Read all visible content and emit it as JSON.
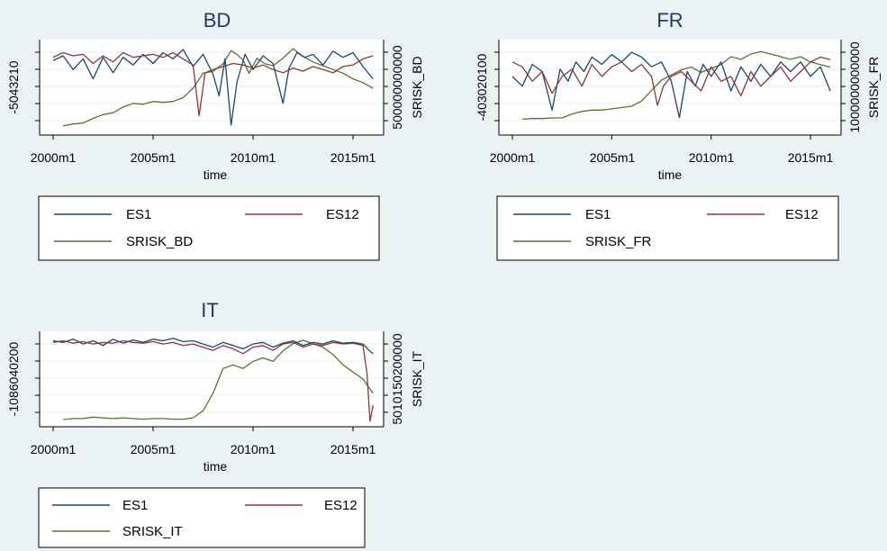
{
  "colors": {
    "es1": "#1a476f",
    "es12": "#90353b",
    "srisk": "#55752f",
    "plotbg": "#ffffff",
    "grid": "#eaf2f3"
  },
  "chart_data": [
    {
      "type": "line",
      "title": "BD",
      "xlabel": "time",
      "ylabel_right": "SRISK_BD",
      "xticks": [
        "2000m1",
        "2005m1",
        "2010m1",
        "2015m1"
      ],
      "left_tick_text": "-5043210",
      "right_tick_text": "500000000000",
      "legend": [
        "ES1",
        "ES12",
        "SRISK_BD"
      ],
      "series": [
        {
          "name": "ES1",
          "axis": "left",
          "x": [
            2000.0,
            2000.5,
            2001.0,
            2001.5,
            2002.0,
            2002.5,
            2003.0,
            2003.5,
            2004.0,
            2004.5,
            2005.0,
            2005.5,
            2006.0,
            2006.5,
            2007.0,
            2007.5,
            2008.0,
            2008.3,
            2008.6,
            2008.9,
            2009.2,
            2009.6,
            2010.0,
            2010.5,
            2011.0,
            2011.5,
            2011.8,
            2012.2,
            2012.6,
            2013.0,
            2013.5,
            2014.0,
            2014.5,
            2015.0,
            2015.5,
            2016.0
          ],
          "y": [
            0.0,
            0.3,
            -0.6,
            0.1,
            -1.2,
            0.2,
            -0.8,
            0.2,
            -0.3,
            0.4,
            -0.2,
            0.5,
            0.1,
            0.7,
            -0.4,
            0.4,
            -0.9,
            -2.3,
            0.1,
            -4.2,
            -1.4,
            0.4,
            -0.6,
            0.3,
            -0.2,
            -2.8,
            -0.5,
            0.5,
            0.2,
            0.4,
            -0.3,
            0.6,
            0.2,
            0.5,
            -0.4,
            -1.2
          ]
        },
        {
          "name": "ES12",
          "axis": "left",
          "x": [
            2000.0,
            2000.5,
            2001.0,
            2001.5,
            2002.0,
            2002.5,
            2003.0,
            2003.5,
            2004.0,
            2004.5,
            2005.0,
            2005.5,
            2006.0,
            2006.5,
            2007.0,
            2007.3,
            2007.6,
            2008.0,
            2008.5,
            2009.0,
            2009.5,
            2010.0,
            2010.5,
            2011.0,
            2011.5,
            2012.0,
            2012.5,
            2013.0,
            2013.5,
            2014.0,
            2014.5,
            2015.0,
            2015.5,
            2016.0
          ],
          "y": [
            0.2,
            0.5,
            0.3,
            0.4,
            -0.2,
            0.3,
            -0.1,
            0.5,
            0.2,
            0.3,
            0.4,
            0.2,
            0.5,
            0.1,
            -0.3,
            -3.6,
            -0.8,
            -0.6,
            -0.4,
            -0.2,
            -0.3,
            -0.5,
            -0.3,
            -0.6,
            -0.8,
            -0.5,
            -0.7,
            -0.4,
            -0.6,
            -0.8,
            -0.4,
            -0.3,
            0.1,
            0.3
          ]
        },
        {
          "name": "SRISK_BD",
          "axis": "right",
          "x": [
            2000.5,
            2001.0,
            2001.5,
            2002.0,
            2002.5,
            2003.0,
            2003.5,
            2004.0,
            2004.5,
            2005.0,
            2005.5,
            2006.0,
            2006.5,
            2007.0,
            2007.5,
            2008.0,
            2008.5,
            2008.9,
            2009.2,
            2009.5,
            2009.8,
            2010.2,
            2010.6,
            2011.0,
            2011.5,
            2012.0,
            2012.5,
            2013.0,
            2013.5,
            2014.0,
            2014.5,
            2015.0,
            2015.5,
            2016.0
          ],
          "y": [
            20,
            30,
            35,
            60,
            80,
            90,
            120,
            140,
            135,
            150,
            145,
            150,
            170,
            220,
            300,
            310,
            350,
            420,
            400,
            370,
            300,
            380,
            350,
            340,
            380,
            430,
            390,
            360,
            340,
            320,
            300,
            270,
            250,
            220
          ]
        }
      ]
    },
    {
      "type": "line",
      "title": "FR",
      "xlabel": "time",
      "ylabel_right": "SRISK_FR",
      "xticks": [
        "2000m1",
        "2005m1",
        "2010m1",
        "2015m1"
      ],
      "left_tick_text": "-403020100",
      "right_tick_text": "1000000000000",
      "legend": [
        "ES1",
        "ES12",
        "SRISK_FR"
      ],
      "series": [
        {
          "name": "ES1",
          "axis": "left",
          "x": [
            2000.0,
            2000.5,
            2001.0,
            2001.5,
            2002.0,
            2002.4,
            2002.8,
            2003.2,
            2003.6,
            2004.0,
            2004.5,
            2005.0,
            2005.5,
            2006.0,
            2006.5,
            2007.0,
            2007.5,
            2008.0,
            2008.4,
            2008.8,
            2009.2,
            2009.6,
            2010.0,
            2010.5,
            2011.0,
            2011.5,
            2012.0,
            2012.5,
            2013.0,
            2013.5,
            2014.0,
            2014.5,
            2015.0,
            2015.5,
            2016.0
          ],
          "y": [
            -8,
            -12,
            -3,
            -6,
            -22,
            -5,
            -10,
            -2,
            -6,
            0,
            -3,
            1,
            -2,
            2,
            0,
            -4,
            -2,
            -10,
            -25,
            -6,
            -12,
            -3,
            -8,
            -2,
            -14,
            -4,
            -10,
            -3,
            -8,
            -2,
            -6,
            -2,
            -8,
            -4,
            -14
          ]
        },
        {
          "name": "ES12",
          "axis": "left",
          "x": [
            2000.0,
            2000.5,
            2001.0,
            2001.5,
            2002.0,
            2002.5,
            2003.0,
            2003.5,
            2004.0,
            2004.5,
            2005.0,
            2005.5,
            2006.0,
            2006.5,
            2007.0,
            2007.3,
            2007.6,
            2008.0,
            2008.5,
            2009.0,
            2009.5,
            2010.0,
            2010.5,
            2011.0,
            2011.5,
            2012.0,
            2012.5,
            2013.0,
            2013.5,
            2014.0,
            2014.5,
            2015.0,
            2015.5,
            2016.0
          ],
          "y": [
            -2,
            -4,
            -10,
            -6,
            -15,
            -8,
            -5,
            -12,
            -3,
            -8,
            -4,
            -2,
            -6,
            -3,
            -8,
            -20,
            -12,
            -8,
            -6,
            -10,
            -14,
            -4,
            -10,
            -8,
            -16,
            -6,
            -12,
            -8,
            -4,
            -10,
            -6,
            -2,
            0,
            -1
          ]
        },
        {
          "name": "SRISK_FR",
          "axis": "right",
          "x": [
            2000.5,
            2001.0,
            2001.5,
            2002.0,
            2002.5,
            2003.0,
            2003.5,
            2004.0,
            2004.5,
            2005.0,
            2005.5,
            2006.0,
            2006.5,
            2007.0,
            2007.5,
            2008.0,
            2008.5,
            2009.0,
            2009.5,
            2010.0,
            2010.5,
            2011.0,
            2011.5,
            2012.0,
            2012.5,
            2013.0,
            2013.5,
            2014.0,
            2014.5,
            2015.0,
            2015.5,
            2016.0
          ],
          "y": [
            80,
            85,
            85,
            90,
            90,
            120,
            140,
            150,
            150,
            160,
            170,
            180,
            220,
            300,
            380,
            420,
            460,
            480,
            440,
            470,
            500,
            560,
            540,
            580,
            600,
            580,
            560,
            540,
            560,
            520,
            500,
            480
          ]
        }
      ]
    },
    {
      "type": "line",
      "title": "IT",
      "xlabel": "time",
      "ylabel_right": "SRISK_IT",
      "xticks": [
        "2000m1",
        "2005m1",
        "2010m1",
        "2015m1"
      ],
      "left_tick_text": "-1086040200",
      "right_tick_text": "5010150200000",
      "legend": [
        "ES1",
        "ES12",
        "SRISK_IT"
      ],
      "series": [
        {
          "name": "ES1",
          "axis": "left",
          "x": [
            2000.0,
            2000.5,
            2001.0,
            2001.5,
            2002.0,
            2002.5,
            2003.0,
            2003.5,
            2004.0,
            2004.5,
            2005.0,
            2005.5,
            2006.0,
            2006.5,
            2007.0,
            2007.5,
            2008.0,
            2008.5,
            2009.0,
            2009.5,
            2010.0,
            2010.5,
            2011.0,
            2011.5,
            2012.0,
            2012.5,
            2013.0,
            2013.5,
            2014.0,
            2014.5,
            2015.0,
            2015.5,
            2015.8,
            2016.0
          ],
          "y": [
            0,
            -2,
            2,
            -4,
            0,
            -6,
            2,
            -3,
            1,
            -2,
            2,
            0,
            3,
            -1,
            0,
            -4,
            -8,
            -2,
            -6,
            -10,
            -4,
            -2,
            -8,
            -3,
            0,
            -6,
            -2,
            -4,
            0,
            -3,
            -2,
            -4,
            -12,
            -16
          ]
        },
        {
          "name": "ES12",
          "axis": "left",
          "x": [
            2000.0,
            2000.5,
            2001.0,
            2001.5,
            2002.0,
            2002.5,
            2003.0,
            2003.5,
            2004.0,
            2004.5,
            2005.0,
            2005.5,
            2006.0,
            2006.5,
            2007.0,
            2007.5,
            2008.0,
            2008.5,
            2009.0,
            2009.5,
            2010.0,
            2010.5,
            2011.0,
            2011.5,
            2012.0,
            2012.5,
            2013.0,
            2013.5,
            2014.0,
            2014.5,
            2015.0,
            2015.5,
            2015.7,
            2015.85,
            2016.0
          ],
          "y": [
            -2,
            0,
            -3,
            -1,
            -4,
            -2,
            -3,
            0,
            -2,
            -3,
            -1,
            -4,
            -2,
            -6,
            -4,
            -8,
            -12,
            -6,
            -10,
            -16,
            -8,
            -6,
            -12,
            -4,
            -2,
            -8,
            -4,
            -6,
            -2,
            -4,
            -3,
            -6,
            -40,
            -100,
            -80
          ]
        },
        {
          "name": "SRISK_IT",
          "axis": "right",
          "x": [
            2000.5,
            2001.0,
            2001.5,
            2002.0,
            2002.5,
            2003.0,
            2003.5,
            2004.0,
            2004.5,
            2005.0,
            2005.5,
            2006.0,
            2006.5,
            2007.0,
            2007.5,
            2008.0,
            2008.5,
            2009.0,
            2009.5,
            2010.0,
            2010.5,
            2011.0,
            2011.5,
            2012.0,
            2012.5,
            2013.0,
            2013.5,
            2014.0,
            2014.5,
            2015.0,
            2015.5,
            2016.0
          ],
          "y": [
            5,
            8,
            8,
            12,
            10,
            8,
            10,
            8,
            6,
            8,
            8,
            6,
            6,
            10,
            30,
            80,
            150,
            160,
            150,
            170,
            180,
            170,
            200,
            220,
            230,
            220,
            210,
            190,
            160,
            140,
            120,
            80
          ]
        }
      ]
    }
  ]
}
